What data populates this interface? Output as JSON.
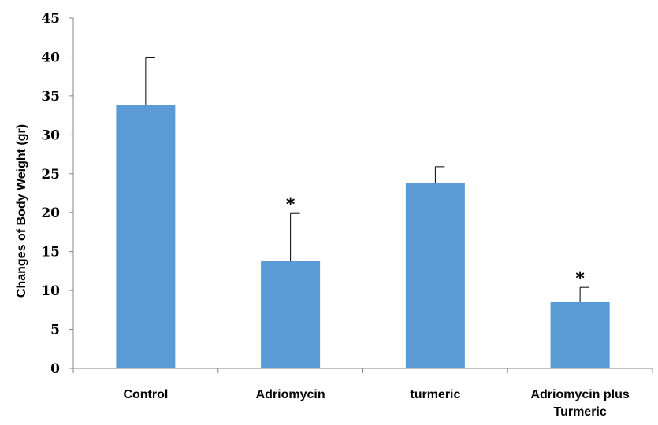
{
  "chart_data": {
    "type": "bar",
    "title": "",
    "xlabel": "",
    "ylabel": "Changes of Body Weight (gr)",
    "ylim": [
      0,
      45
    ],
    "yticks": [
      "0",
      "5",
      "10",
      "15",
      "20",
      "25",
      "30",
      "35",
      "40",
      "45"
    ],
    "categories": [
      [
        "Control"
      ],
      [
        "Adriomycin"
      ],
      [
        "turmeric"
      ],
      [
        "Adriomycin plus",
        "Turmeric"
      ]
    ],
    "values": [
      33.8,
      13.8,
      23.8,
      8.5
    ],
    "error_upper": [
      6.1,
      6.1,
      2.1,
      1.9
    ],
    "significance": [
      "",
      "*",
      "",
      "*"
    ],
    "bar_color": "#5B9BD5",
    "grid": false,
    "legend": "none"
  }
}
